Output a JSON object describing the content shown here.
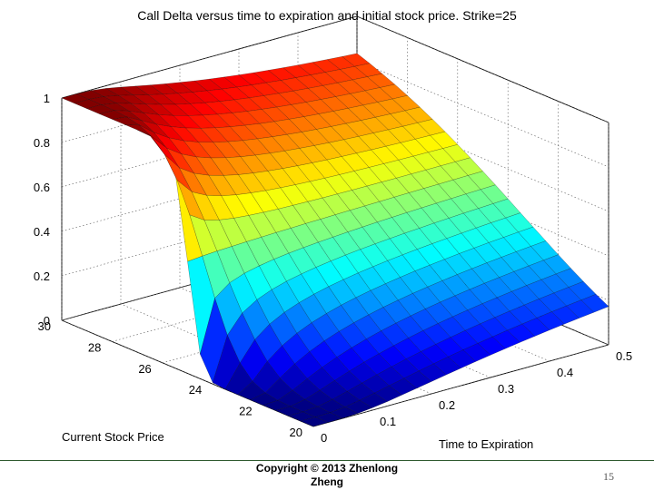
{
  "chart_data": {
    "type": "surface",
    "title": "Call Delta versus time to expiration and initial stock price. Strike=25",
    "xlabel": "Time to Expiration",
    "ylabel": "Current Stock Price",
    "zlabel": "",
    "strike": 25,
    "x": [
      0,
      0.025,
      0.05,
      0.075,
      0.1,
      0.125,
      0.15,
      0.175,
      0.2,
      0.225,
      0.25,
      0.275,
      0.3,
      0.325,
      0.35,
      0.375,
      0.4,
      0.425,
      0.45,
      0.475,
      0.5
    ],
    "y": [
      20,
      20.5,
      21,
      21.5,
      22,
      22.5,
      23,
      23.5,
      24,
      24.5,
      25,
      25.5,
      26,
      26.5,
      27,
      27.5,
      28,
      28.5,
      29,
      29.5,
      30
    ],
    "z_ref": [
      {
        "stock_price": 20,
        "time": 0.5,
        "delta": 0.08
      },
      {
        "stock_price": 25,
        "time": 0.5,
        "delta": 0.55
      },
      {
        "stock_price": 30,
        "time": 0.5,
        "delta": 0.94
      },
      {
        "stock_price": 25,
        "time": 0,
        "delta": 0.5
      },
      {
        "stock_price": 30,
        "time": 0,
        "delta": 1
      },
      {
        "stock_price": 20,
        "time": 0,
        "delta": 0
      }
    ],
    "xlim": [
      0,
      0.5
    ],
    "ylim": [
      20,
      30
    ],
    "zlim": [
      0,
      1
    ],
    "x_ticks": [
      "0",
      "0.1",
      "0.2",
      "0.3",
      "0.4",
      "0.5"
    ],
    "y_ticks": [
      "20",
      "22",
      "24",
      "26",
      "28",
      "30"
    ],
    "z_ticks": [
      "0",
      "0.2",
      "0.4",
      "0.6",
      "0.8",
      "1"
    ],
    "colormap": "jet",
    "grid": true
  },
  "footer": {
    "copyright_line1": "Copyright © 2013 Zhenlong",
    "copyright_line2": "Zheng",
    "page_number": "15"
  }
}
